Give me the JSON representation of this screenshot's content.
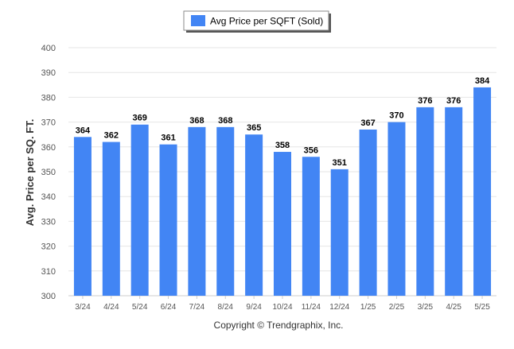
{
  "chart_data": {
    "type": "bar",
    "categories": [
      "3/24",
      "4/24",
      "5/24",
      "6/24",
      "7/24",
      "8/24",
      "9/24",
      "10/24",
      "11/24",
      "12/24",
      "1/25",
      "2/25",
      "3/25",
      "4/25",
      "5/25"
    ],
    "series": [
      {
        "name": "Avg Price per SQFT (Sold)",
        "color": "#4285f4",
        "values": [
          364,
          362,
          369,
          361,
          368,
          368,
          365,
          358,
          356,
          351,
          367,
          370,
          376,
          376,
          384
        ]
      }
    ],
    "ylabel": "Avg. Price per SQ. FT.",
    "xlabel": "",
    "ylim": [
      300,
      400
    ],
    "yticks": [
      300,
      310,
      320,
      330,
      340,
      350,
      360,
      370,
      380,
      390,
      400
    ],
    "grid": true,
    "legend_position": "top-center",
    "data_labels": true
  },
  "footer": {
    "copyright": "Copyright © Trendgraphix, Inc."
  },
  "colors": {
    "bar": "#4285f4",
    "grid": "#e6e6e6",
    "axis_text": "#555555",
    "label_text": "#000000"
  }
}
